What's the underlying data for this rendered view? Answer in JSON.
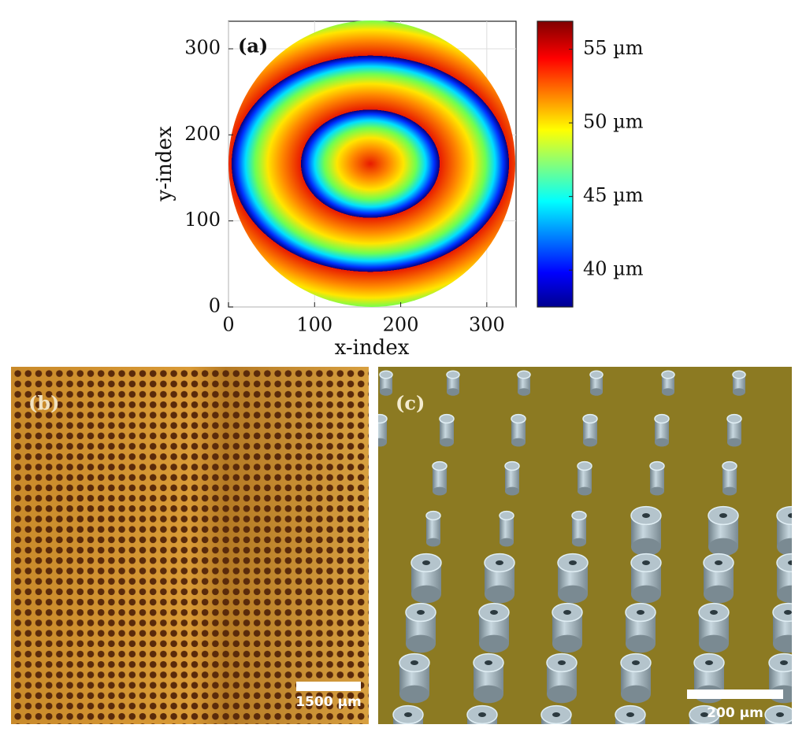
{
  "chart_data": {
    "type": "heatmap",
    "panel_label": "(a)",
    "xlabel": "x-index",
    "ylabel": "y-index",
    "xlim": [
      0,
      334
    ],
    "ylim": [
      0,
      332
    ],
    "xticks": [
      0,
      100,
      200,
      300
    ],
    "yticks": [
      0,
      100,
      200,
      300
    ],
    "colorbar": {
      "lim": [
        37.5,
        56.9
      ],
      "ticks": [
        {
          "value": 40,
          "label": "40 µm"
        },
        {
          "value": 45,
          "label": "45 µm"
        },
        {
          "value": 50,
          "label": "50 µm"
        },
        {
          "value": 55,
          "label": "55 µm"
        }
      ]
    }
  },
  "panels": {
    "b": {
      "label": "(b)",
      "scale_bar": "1500 µm"
    },
    "c": {
      "label": "(c)",
      "scale_bar": "200 µm"
    }
  }
}
